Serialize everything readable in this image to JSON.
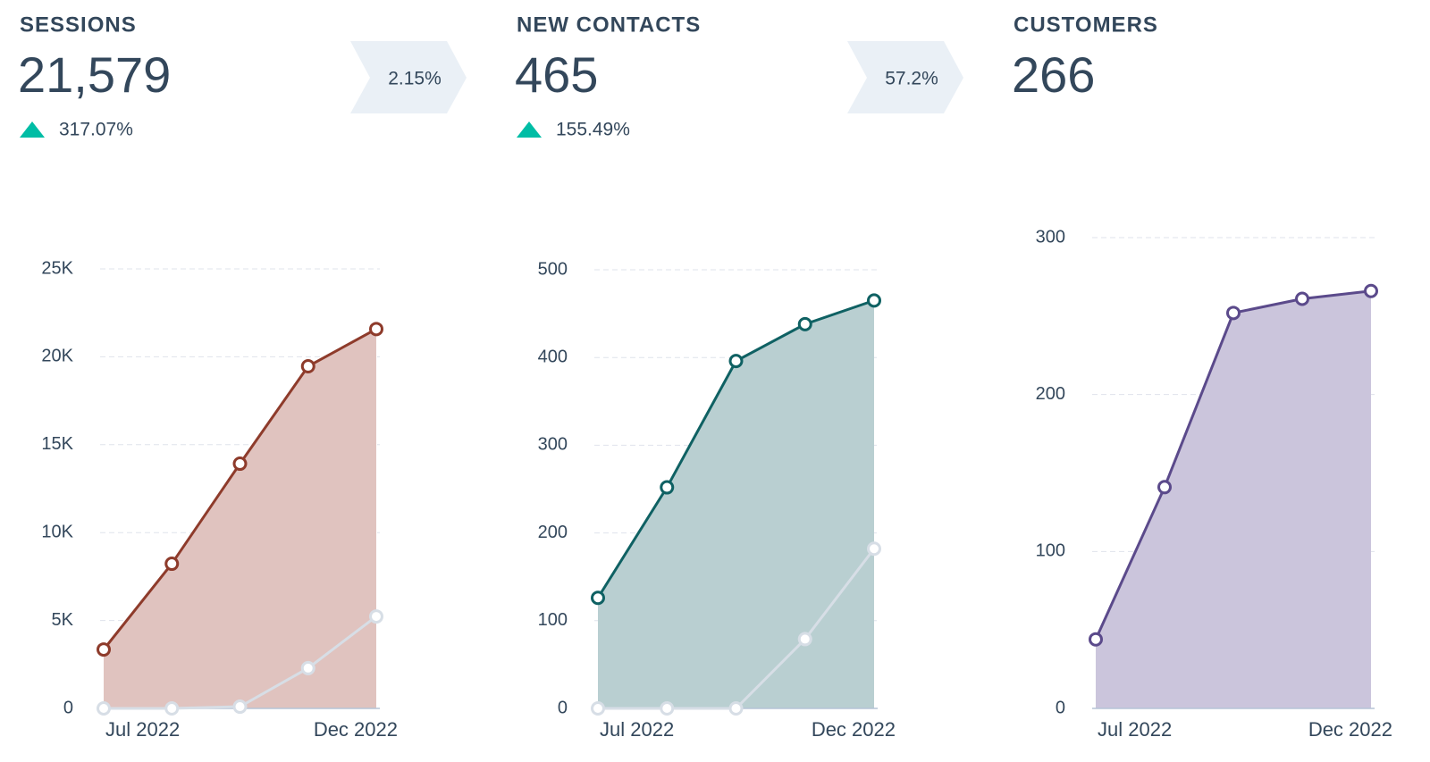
{
  "kpis": [
    {
      "label": "SESSIONS",
      "value": "21,579",
      "change": "317.07%",
      "conversion": "2.15%"
    },
    {
      "label": "NEW CONTACTS",
      "value": "465",
      "change": "155.49%",
      "conversion": "57.2%"
    },
    {
      "label": "CUSTOMERS",
      "value": "266"
    }
  ],
  "chart_data": [
    {
      "type": "area",
      "categories": [
        "Jul 2022",
        null,
        null,
        null,
        "Dec 2022"
      ],
      "series": [
        {
          "color": "#8e3b2b",
          "fill": "#e0c3bf",
          "values": [
            3350,
            8230,
            13920,
            19460,
            21579
          ]
        },
        {
          "color": "#d7dee6",
          "fill": "#c9b8b8",
          "values": [
            0,
            0,
            100,
            2290,
            5230
          ]
        }
      ],
      "ylim": [
        0,
        25000
      ],
      "yticks": [
        0,
        {
          "value": 5000,
          "label": "5K"
        },
        {
          "value": 10000,
          "label": "10K"
        },
        {
          "value": 15000,
          "label": "15K"
        },
        {
          "value": 20000,
          "label": "20K"
        },
        {
          "value": 25000,
          "label": "25K"
        }
      ],
      "grid": true
    },
    {
      "type": "area",
      "categories": [
        "Jul 2022",
        null,
        null,
        null,
        "Dec 2022"
      ],
      "series": [
        {
          "color": "#0f6163",
          "fill": "#b9cfd1",
          "values": [
            126,
            252,
            396,
            438,
            465
          ]
        },
        {
          "color": "#d7dee6",
          "fill": "#a9c3c8",
          "values": [
            0,
            0,
            0,
            79,
            182
          ]
        }
      ],
      "ylim": [
        0,
        500
      ],
      "yticks": [
        0,
        100,
        200,
        300,
        400,
        500
      ],
      "grid": true
    },
    {
      "type": "area",
      "categories": [
        "Jul 2022",
        null,
        null,
        null,
        "Dec 2022"
      ],
      "series": [
        {
          "color": "#5b4a8b",
          "fill": "#cbc5dc",
          "values": [
            44,
            141,
            252,
            261,
            266
          ]
        }
      ],
      "ylim": [
        0,
        300
      ],
      "yticks": [
        0,
        100,
        200,
        300
      ],
      "grid": true
    }
  ]
}
